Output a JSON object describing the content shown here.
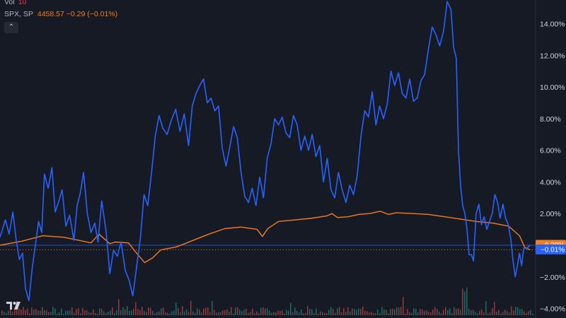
{
  "legend": {
    "vol_label": "Vol",
    "vol_value": "10",
    "spx_label": "SPX, SP",
    "spx_values": "4458.57  −0.29 (−0.01%)"
  },
  "collapse_icon": "chevron-up-icon",
  "colors": {
    "background": "#161a25",
    "blue_series": "#2962ff",
    "orange_series": "#f57c1f",
    "axis_text": "#d1d4dc",
    "volume_up": "#26a69a",
    "volume_down": "#ef5350"
  },
  "chart_data": {
    "type": "line",
    "y_axis": {
      "position": "right",
      "unit": "%",
      "ylim": [
        -4.6,
        15.5
      ],
      "ticks": [
        "14.00%",
        "12.00%",
        "10.00%",
        "8.00%",
        "6.00%",
        "4.00%",
        "2.00%",
        "0.00%",
        "−2.00%",
        "−4.00%"
      ],
      "tick_values": [
        14,
        12,
        10,
        8,
        6,
        4,
        2,
        0,
        -2,
        -4
      ]
    },
    "x_range": [
      0,
      100
    ],
    "grid": false,
    "series": [
      {
        "color": "#2962ff",
        "last_value_label": "−0.01%",
        "points": [
          [
            0,
            0.5
          ],
          [
            1,
            1.6
          ],
          [
            1.7,
            0.7
          ],
          [
            2.4,
            2.1
          ],
          [
            3,
            0.4
          ],
          [
            3.6,
            -0.9
          ],
          [
            4.2,
            -0.5
          ],
          [
            4.8,
            -2.8
          ],
          [
            5.4,
            -3.5
          ],
          [
            6,
            -1.5
          ],
          [
            6.6,
            0.0
          ],
          [
            7.2,
            1.5
          ],
          [
            7.8,
            0.8
          ],
          [
            8.3,
            4.5
          ],
          [
            9,
            3.6
          ],
          [
            9.7,
            4.9
          ],
          [
            10.3,
            2.1
          ],
          [
            10.9,
            2.7
          ],
          [
            11.6,
            3.5
          ],
          [
            12.3,
            1.2
          ],
          [
            13,
            1.9
          ],
          [
            13.8,
            0.3
          ],
          [
            14.4,
            2.5
          ],
          [
            15,
            3.3
          ],
          [
            15.6,
            4.6
          ],
          [
            16.3,
            2.0
          ],
          [
            17,
            0.8
          ],
          [
            17.7,
            1.4
          ],
          [
            18.3,
            0.2
          ],
          [
            19,
            2.8
          ],
          [
            19.8,
            0.9
          ],
          [
            20.5,
            -1.8
          ],
          [
            21.2,
            -0.3
          ],
          [
            21.9,
            -0.7
          ],
          [
            22.6,
            0.2
          ],
          [
            23.4,
            -1.6
          ],
          [
            24.1,
            -2.2
          ],
          [
            24.8,
            -3.2
          ],
          [
            25.5,
            -1.4
          ],
          [
            26.2,
            0.4
          ],
          [
            26.9,
            3.2
          ],
          [
            27.6,
            2.5
          ],
          [
            28.3,
            4.6
          ],
          [
            29,
            6.9
          ],
          [
            29.7,
            8.2
          ],
          [
            30.4,
            7.4
          ],
          [
            31.2,
            7.0
          ],
          [
            32,
            7.9
          ],
          [
            32.8,
            8.6
          ],
          [
            33.6,
            7.2
          ],
          [
            34.4,
            8.3
          ],
          [
            35.2,
            6.3
          ],
          [
            35.9,
            8.8
          ],
          [
            36.6,
            9.6
          ],
          [
            37.3,
            10.1
          ],
          [
            38,
            10.5
          ],
          [
            38.7,
            9.0
          ],
          [
            39.4,
            9.3
          ],
          [
            40.1,
            8.5
          ],
          [
            40.8,
            8.8
          ],
          [
            41.5,
            6.1
          ],
          [
            42.2,
            5.0
          ],
          [
            42.9,
            6.2
          ],
          [
            43.6,
            7.5
          ],
          [
            44.3,
            6.8
          ],
          [
            45,
            4.6
          ],
          [
            45.7,
            3.1
          ],
          [
            46.4,
            2.7
          ],
          [
            47.1,
            3.6
          ],
          [
            47.8,
            2.5
          ],
          [
            48.5,
            4.3
          ],
          [
            49.2,
            3.0
          ],
          [
            49.9,
            5.5
          ],
          [
            50.6,
            6.4
          ],
          [
            51.3,
            8.0
          ],
          [
            52,
            7.6
          ],
          [
            52.7,
            8.1
          ],
          [
            53.4,
            7.1
          ],
          [
            54.1,
            6.8
          ],
          [
            54.8,
            8.2
          ],
          [
            55.5,
            7.6
          ],
          [
            56.2,
            6.0
          ],
          [
            56.9,
            6.9
          ],
          [
            57.6,
            6.0
          ],
          [
            58.3,
            7.0
          ],
          [
            59,
            5.6
          ],
          [
            59.7,
            6.3
          ],
          [
            60.4,
            4.0
          ],
          [
            61.1,
            5.5
          ],
          [
            61.8,
            3.5
          ],
          [
            62.5,
            3.0
          ],
          [
            63.2,
            4.6
          ],
          [
            63.9,
            3.5
          ],
          [
            64.6,
            2.7
          ],
          [
            65.3,
            3.8
          ],
          [
            66,
            3.2
          ],
          [
            66.7,
            4.4
          ],
          [
            67.4,
            6.9
          ],
          [
            68.1,
            8.5
          ],
          [
            68.8,
            8.1
          ],
          [
            69.5,
            9.7
          ],
          [
            70.2,
            7.6
          ],
          [
            70.9,
            8.8
          ],
          [
            71.6,
            8.0
          ],
          [
            72.3,
            8.9
          ],
          [
            73,
            11.0
          ],
          [
            73.7,
            10.1
          ],
          [
            74.4,
            10.9
          ],
          [
            75.1,
            9.6
          ],
          [
            75.8,
            9.3
          ],
          [
            76.5,
            10.5
          ],
          [
            77.2,
            9.1
          ],
          [
            77.9,
            9.3
          ],
          [
            78.6,
            10.4
          ],
          [
            79.3,
            10.8
          ],
          [
            80,
            12.4
          ],
          [
            80.7,
            13.8
          ],
          [
            81.4,
            13.3
          ],
          [
            82.1,
            12.6
          ],
          [
            82.8,
            13.5
          ],
          [
            83.5,
            15.4
          ],
          [
            84.2,
            14.9
          ],
          [
            84.7,
            12.5
          ],
          [
            85.2,
            11.8
          ],
          [
            85.6,
            6.0
          ],
          [
            86,
            3.8
          ],
          [
            86.4,
            2.5
          ],
          [
            86.8,
            2.0
          ],
          [
            87.2,
            1.0
          ],
          [
            87.6,
            -0.6
          ],
          [
            88,
            -0.6
          ],
          [
            88.4,
            -1.0
          ],
          [
            88.9,
            2.0
          ],
          [
            89.4,
            2.6
          ],
          [
            89.9,
            1.3
          ],
          [
            90.4,
            1.8
          ],
          [
            90.9,
            1.0
          ],
          [
            91.4,
            1.5
          ],
          [
            91.9,
            2.0
          ],
          [
            92.4,
            3.2
          ],
          [
            92.9,
            2.7
          ],
          [
            93.4,
            1.7
          ],
          [
            93.9,
            2.6
          ],
          [
            94.4,
            1.7
          ],
          [
            94.9,
            1.3
          ],
          [
            95.4,
            0.3
          ],
          [
            95.8,
            -1.0
          ],
          [
            96.2,
            -2.0
          ],
          [
            96.6,
            -1.3
          ],
          [
            97,
            -0.5
          ],
          [
            97.4,
            -1.3
          ],
          [
            97.8,
            -0.2
          ],
          [
            98.3,
            -0.2
          ],
          [
            99,
            0.0
          ]
        ]
      },
      {
        "color": "#f57c1f",
        "last_value_label": "−0.29%",
        "points": [
          [
            0,
            0.0
          ],
          [
            4,
            0.25
          ],
          [
            8,
            0.6
          ],
          [
            12,
            0.5
          ],
          [
            17,
            0.15
          ],
          [
            18.5,
            0.7
          ],
          [
            20.5,
            0.1
          ],
          [
            21.5,
            0.2
          ],
          [
            24,
            0.15
          ],
          [
            25,
            -0.3
          ],
          [
            27,
            -1.1
          ],
          [
            28.5,
            -0.8
          ],
          [
            30,
            -0.3
          ],
          [
            33,
            -0.1
          ],
          [
            36,
            0.3
          ],
          [
            39,
            0.7
          ],
          [
            42,
            1.05
          ],
          [
            45,
            1.15
          ],
          [
            48,
            1.0
          ],
          [
            49,
            0.55
          ],
          [
            50,
            1.05
          ],
          [
            52,
            1.5
          ],
          [
            55,
            1.6
          ],
          [
            58,
            1.7
          ],
          [
            61,
            1.85
          ],
          [
            62,
            2.0
          ],
          [
            63,
            1.75
          ],
          [
            65,
            1.8
          ],
          [
            67,
            1.95
          ],
          [
            69,
            2.0
          ],
          [
            71,
            2.15
          ],
          [
            72.5,
            1.95
          ],
          [
            74,
            2.05
          ],
          [
            77,
            2.0
          ],
          [
            80,
            1.95
          ],
          [
            83,
            1.8
          ],
          [
            86,
            1.65
          ],
          [
            89,
            1.5
          ],
          [
            92,
            1.4
          ],
          [
            95,
            1.2
          ],
          [
            97,
            0.6
          ],
          [
            98,
            -0.15
          ],
          [
            99,
            -0.29
          ]
        ]
      }
    ]
  }
}
